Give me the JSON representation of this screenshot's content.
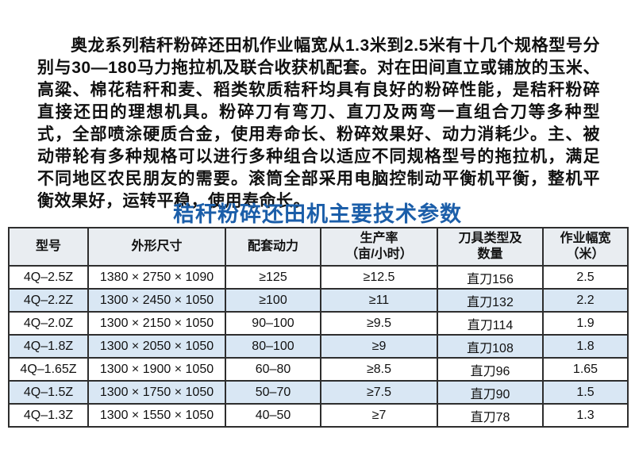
{
  "intro": {
    "text": "奥龙系列秸秆粉碎还田机作业幅宽从1.3米到2.5米有十几个规格型号分别与30—180马力拖拉机及联合收获机配套。对在田间直立或铺放的玉米、高粱、棉花秸秆和麦、稻类软质秸秆均具有良好的粉碎性能，是秸秆粉碎直接还田的理想机具。粉碎刀有弯刀、直刀及两弯一直组合刀等多种型式，全部喷涂硬质合金，使用寿命长、粉碎效果好、动力消耗少。主、被动带轮有多种规格可以进行多种组合以适应不同规格型号的拖拉机，满足不同地区农民朋友的需要。滚筒全部采用电脑控制动平衡机平衡，整机平衡效果好，运转平稳，使用寿命长。"
  },
  "table": {
    "title": "秸秆粉碎还田机主要技术参数",
    "headers": [
      "型号",
      "外形尺寸",
      "配套动力",
      "生产率\n（亩/小时）",
      "刀具类型及\n数量",
      "作业幅宽\n（米）"
    ],
    "rows": [
      [
        "4Q–2.5Z",
        "1380 × 2750 × 1090",
        "≥125",
        "≥12.5",
        "直刀156",
        "2.5"
      ],
      [
        "4Q–2.2Z",
        "1300 × 2450 × 1050",
        "≥100",
        "≥11",
        "直刀132",
        "2.2"
      ],
      [
        "4Q–2.0Z",
        "1300 × 2150 × 1050",
        "90–100",
        "≥9.5",
        "直刀114",
        "1.9"
      ],
      [
        "4Q–1.8Z",
        "1300 × 2050 × 1050",
        "80–100",
        "≥9",
        "直刀108",
        "1.8"
      ],
      [
        "4Q–1.65Z",
        "1300 × 1900 × 1050",
        "60–80",
        "≥8.5",
        "直刀96",
        "1.65"
      ],
      [
        "4Q–1.5Z",
        "1300 × 1750 × 1050",
        "50–70",
        "≥7.5",
        "直刀90",
        "1.5"
      ],
      [
        "4Q–1.3Z",
        "1300 × 1550 × 1050",
        "40–50",
        "≥7",
        "直刀78",
        "1.3"
      ]
    ]
  },
  "colors": {
    "title_blue": "#1b5ea9",
    "header_bg": "#e9edf1",
    "alt_row_bg": "#d9e7f4",
    "table_border": "#2e2e2e",
    "text": "#111111"
  }
}
